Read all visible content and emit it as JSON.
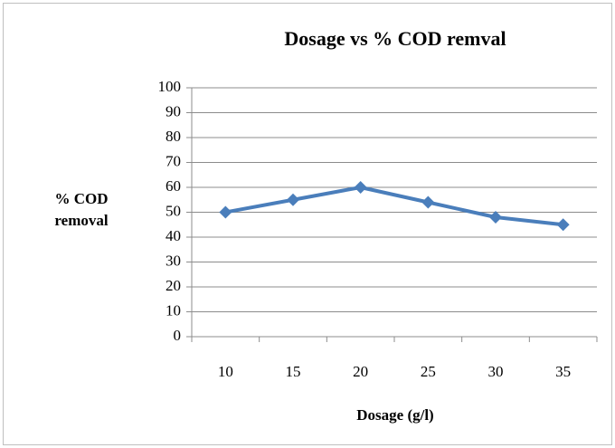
{
  "chart_data": {
    "type": "line",
    "title": "Dosage vs % COD remval",
    "x_label": "Dosage (g/l)",
    "y_label": "% COD removal",
    "categories": [
      "10",
      "15",
      "20",
      "25",
      "30",
      "35"
    ],
    "series": [
      {
        "name": "% COD removal",
        "color": "#4a7ebb",
        "values": [
          50,
          55,
          60,
          54,
          48,
          45
        ]
      }
    ],
    "ylim": [
      0,
      100
    ],
    "yticks": [
      0,
      10,
      20,
      30,
      40,
      50,
      60,
      70,
      80,
      90,
      100
    ],
    "grid": true
  }
}
